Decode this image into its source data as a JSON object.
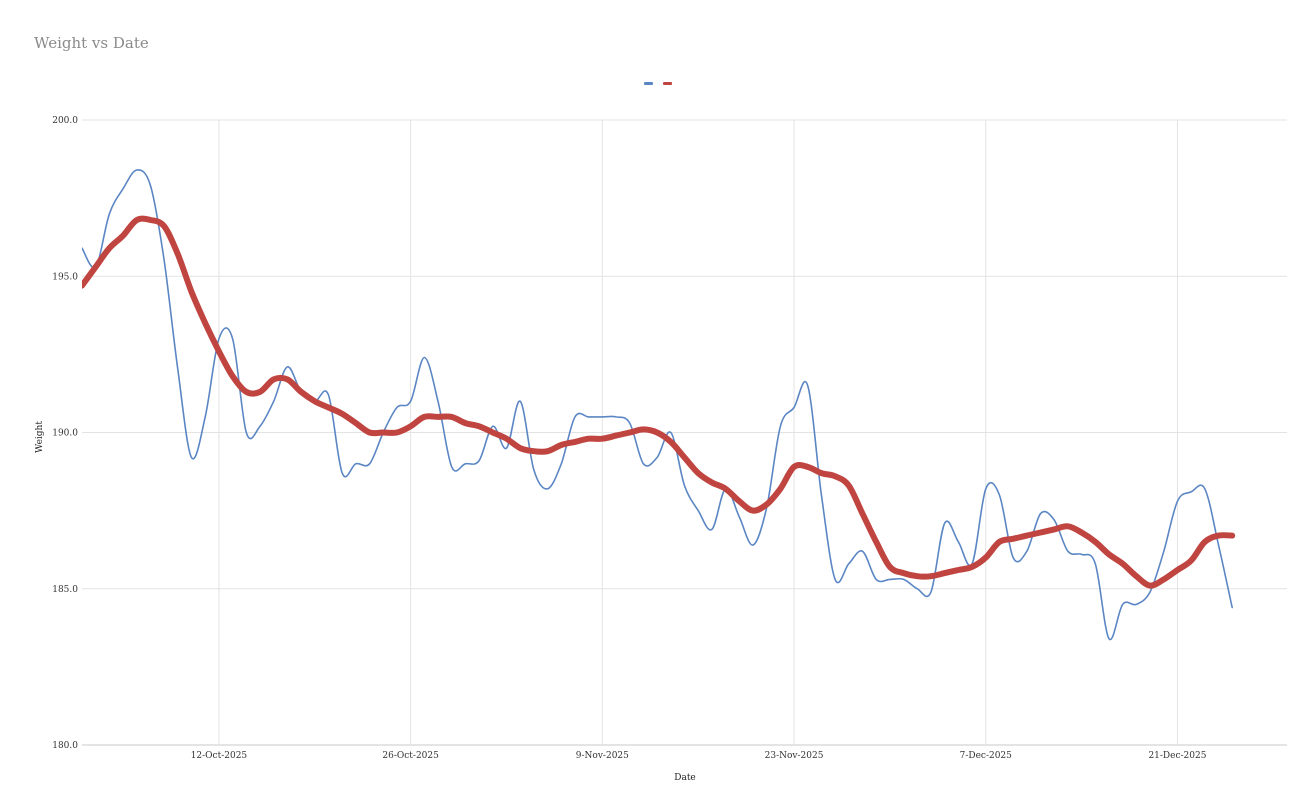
{
  "chart_data": {
    "type": "line",
    "title": "Weight vs Date",
    "xlabel": "Date",
    "ylabel": "Weight",
    "ylim": [
      180,
      200
    ],
    "xlim": [
      "2025-10-02",
      "2025-12-29"
    ],
    "grid": true,
    "legend_position": "top-center",
    "x_ticks": [
      "2025-10-12",
      "2025-10-26",
      "2025-11-09",
      "2025-11-23",
      "2025-12-07",
      "2025-12-21"
    ],
    "x_tick_labels": [
      "12-Oct-2025",
      "26-Oct-2025",
      "9-Nov-2025",
      "23-Nov-2025",
      "7-Dec-2025",
      "21-Dec-2025"
    ],
    "y_ticks": [
      180,
      185,
      190,
      195,
      200
    ],
    "y_tick_labels": [
      "180.0",
      "185.0",
      "190.0",
      "195.0",
      "200.0"
    ],
    "series": [
      {
        "color": "#5b86c4",
        "style": "thin",
        "points": [
          [
            "2025-10-02",
            195.9
          ],
          [
            "2025-10-03",
            195.3
          ],
          [
            "2025-10-04",
            197.0
          ],
          [
            "2025-10-05",
            197.8
          ],
          [
            "2025-10-06",
            198.4
          ],
          [
            "2025-10-07",
            197.9
          ],
          [
            "2025-10-08",
            195.5
          ],
          [
            "2025-10-09",
            192.0
          ],
          [
            "2025-10-10",
            189.2
          ],
          [
            "2025-10-11",
            190.5
          ],
          [
            "2025-10-12",
            193.0
          ],
          [
            "2025-10-13",
            193.0
          ],
          [
            "2025-10-14",
            190.0
          ],
          [
            "2025-10-15",
            190.2
          ],
          [
            "2025-10-16",
            191.0
          ],
          [
            "2025-10-17",
            192.1
          ],
          [
            "2025-10-18",
            191.3
          ],
          [
            "2025-10-19",
            191.0
          ],
          [
            "2025-10-20",
            191.2
          ],
          [
            "2025-10-21",
            188.7
          ],
          [
            "2025-10-22",
            189.0
          ],
          [
            "2025-10-23",
            189.0
          ],
          [
            "2025-10-24",
            190.0
          ],
          [
            "2025-10-25",
            190.8
          ],
          [
            "2025-10-26",
            191.0
          ],
          [
            "2025-10-27",
            192.4
          ],
          [
            "2025-10-28",
            191.0
          ],
          [
            "2025-10-29",
            188.9
          ],
          [
            "2025-10-30",
            189.0
          ],
          [
            "2025-10-31",
            189.1
          ],
          [
            "2025-11-01",
            190.2
          ],
          [
            "2025-11-02",
            189.5
          ],
          [
            "2025-11-03",
            191.0
          ],
          [
            "2025-11-04",
            188.8
          ],
          [
            "2025-11-05",
            188.2
          ],
          [
            "2025-11-06",
            189.0
          ],
          [
            "2025-11-07",
            190.5
          ],
          [
            "2025-11-08",
            190.5
          ],
          [
            "2025-11-09",
            190.5
          ],
          [
            "2025-11-10",
            190.5
          ],
          [
            "2025-11-11",
            190.3
          ],
          [
            "2025-11-12",
            189.0
          ],
          [
            "2025-11-13",
            189.2
          ],
          [
            "2025-11-14",
            190.0
          ],
          [
            "2025-11-15",
            188.3
          ],
          [
            "2025-11-16",
            187.5
          ],
          [
            "2025-11-17",
            186.9
          ],
          [
            "2025-11-18",
            188.2
          ],
          [
            "2025-11-19",
            187.3
          ],
          [
            "2025-11-20",
            186.4
          ],
          [
            "2025-11-21",
            187.6
          ],
          [
            "2025-11-22",
            190.2
          ],
          [
            "2025-11-23",
            190.8
          ],
          [
            "2025-11-24",
            191.5
          ],
          [
            "2025-11-25",
            188.0
          ],
          [
            "2025-11-26",
            185.3
          ],
          [
            "2025-11-27",
            185.8
          ],
          [
            "2025-11-28",
            186.2
          ],
          [
            "2025-11-29",
            185.3
          ],
          [
            "2025-11-30",
            185.3
          ],
          [
            "2025-12-01",
            185.3
          ],
          [
            "2025-12-02",
            185.0
          ],
          [
            "2025-12-03",
            184.9
          ],
          [
            "2025-12-04",
            187.1
          ],
          [
            "2025-12-05",
            186.5
          ],
          [
            "2025-12-06",
            185.8
          ],
          [
            "2025-12-07",
            188.2
          ],
          [
            "2025-12-08",
            188.0
          ],
          [
            "2025-12-09",
            186.0
          ],
          [
            "2025-12-10",
            186.2
          ],
          [
            "2025-12-11",
            187.4
          ],
          [
            "2025-12-12",
            187.2
          ],
          [
            "2025-12-13",
            186.2
          ],
          [
            "2025-12-14",
            186.1
          ],
          [
            "2025-12-15",
            185.8
          ],
          [
            "2025-12-16",
            183.4
          ],
          [
            "2025-12-17",
            184.5
          ],
          [
            "2025-12-18",
            184.5
          ],
          [
            "2025-12-19",
            184.9
          ],
          [
            "2025-12-20",
            186.2
          ],
          [
            "2025-12-21",
            187.8
          ],
          [
            "2025-12-22",
            188.1
          ],
          [
            "2025-12-23",
            188.2
          ],
          [
            "2025-12-24",
            186.4
          ],
          [
            "2025-12-25",
            184.4
          ]
        ]
      },
      {
        "color": "#c0443f",
        "style": "thick",
        "points": [
          [
            "2025-10-02",
            194.7
          ],
          [
            "2025-10-03",
            195.3
          ],
          [
            "2025-10-04",
            195.9
          ],
          [
            "2025-10-05",
            196.3
          ],
          [
            "2025-10-06",
            196.8
          ],
          [
            "2025-10-07",
            196.8
          ],
          [
            "2025-10-08",
            196.6
          ],
          [
            "2025-10-09",
            195.7
          ],
          [
            "2025-10-10",
            194.5
          ],
          [
            "2025-10-11",
            193.5
          ],
          [
            "2025-10-12",
            192.6
          ],
          [
            "2025-10-13",
            191.8
          ],
          [
            "2025-10-14",
            191.3
          ],
          [
            "2025-10-15",
            191.3
          ],
          [
            "2025-10-16",
            191.7
          ],
          [
            "2025-10-17",
            191.7
          ],
          [
            "2025-10-18",
            191.3
          ],
          [
            "2025-10-19",
            191.0
          ],
          [
            "2025-10-20",
            190.8
          ],
          [
            "2025-10-21",
            190.6
          ],
          [
            "2025-10-22",
            190.3
          ],
          [
            "2025-10-23",
            190.0
          ],
          [
            "2025-10-24",
            190.0
          ],
          [
            "2025-10-25",
            190.0
          ],
          [
            "2025-10-26",
            190.2
          ],
          [
            "2025-10-27",
            190.5
          ],
          [
            "2025-10-28",
            190.5
          ],
          [
            "2025-10-29",
            190.5
          ],
          [
            "2025-10-30",
            190.3
          ],
          [
            "2025-10-31",
            190.2
          ],
          [
            "2025-11-01",
            190.0
          ],
          [
            "2025-11-02",
            189.8
          ],
          [
            "2025-11-03",
            189.5
          ],
          [
            "2025-11-04",
            189.4
          ],
          [
            "2025-11-05",
            189.4
          ],
          [
            "2025-11-06",
            189.6
          ],
          [
            "2025-11-07",
            189.7
          ],
          [
            "2025-11-08",
            189.8
          ],
          [
            "2025-11-09",
            189.8
          ],
          [
            "2025-11-10",
            189.9
          ],
          [
            "2025-11-11",
            190.0
          ],
          [
            "2025-11-12",
            190.1
          ],
          [
            "2025-11-13",
            190.0
          ],
          [
            "2025-11-14",
            189.7
          ],
          [
            "2025-11-15",
            189.2
          ],
          [
            "2025-11-16",
            188.7
          ],
          [
            "2025-11-17",
            188.4
          ],
          [
            "2025-11-18",
            188.2
          ],
          [
            "2025-11-19",
            187.8
          ],
          [
            "2025-11-20",
            187.5
          ],
          [
            "2025-11-21",
            187.7
          ],
          [
            "2025-11-22",
            188.2
          ],
          [
            "2025-11-23",
            188.9
          ],
          [
            "2025-11-24",
            188.9
          ],
          [
            "2025-11-25",
            188.7
          ],
          [
            "2025-11-26",
            188.6
          ],
          [
            "2025-11-27",
            188.3
          ],
          [
            "2025-11-28",
            187.4
          ],
          [
            "2025-11-29",
            186.5
          ],
          [
            "2025-11-30",
            185.7
          ],
          [
            "2025-12-01",
            185.5
          ],
          [
            "2025-12-02",
            185.4
          ],
          [
            "2025-12-03",
            185.4
          ],
          [
            "2025-12-04",
            185.5
          ],
          [
            "2025-12-05",
            185.6
          ],
          [
            "2025-12-06",
            185.7
          ],
          [
            "2025-12-07",
            186.0
          ],
          [
            "2025-12-08",
            186.5
          ],
          [
            "2025-12-09",
            186.6
          ],
          [
            "2025-12-10",
            186.7
          ],
          [
            "2025-12-11",
            186.8
          ],
          [
            "2025-12-12",
            186.9
          ],
          [
            "2025-12-13",
            187.0
          ],
          [
            "2025-12-14",
            186.8
          ],
          [
            "2025-12-15",
            186.5
          ],
          [
            "2025-12-16",
            186.1
          ],
          [
            "2025-12-17",
            185.8
          ],
          [
            "2025-12-18",
            185.4
          ],
          [
            "2025-12-19",
            185.1
          ],
          [
            "2025-12-20",
            185.3
          ],
          [
            "2025-12-21",
            185.6
          ],
          [
            "2025-12-22",
            185.9
          ],
          [
            "2025-12-23",
            186.5
          ],
          [
            "2025-12-24",
            186.7
          ],
          [
            "2025-12-25",
            186.7
          ]
        ]
      }
    ]
  }
}
